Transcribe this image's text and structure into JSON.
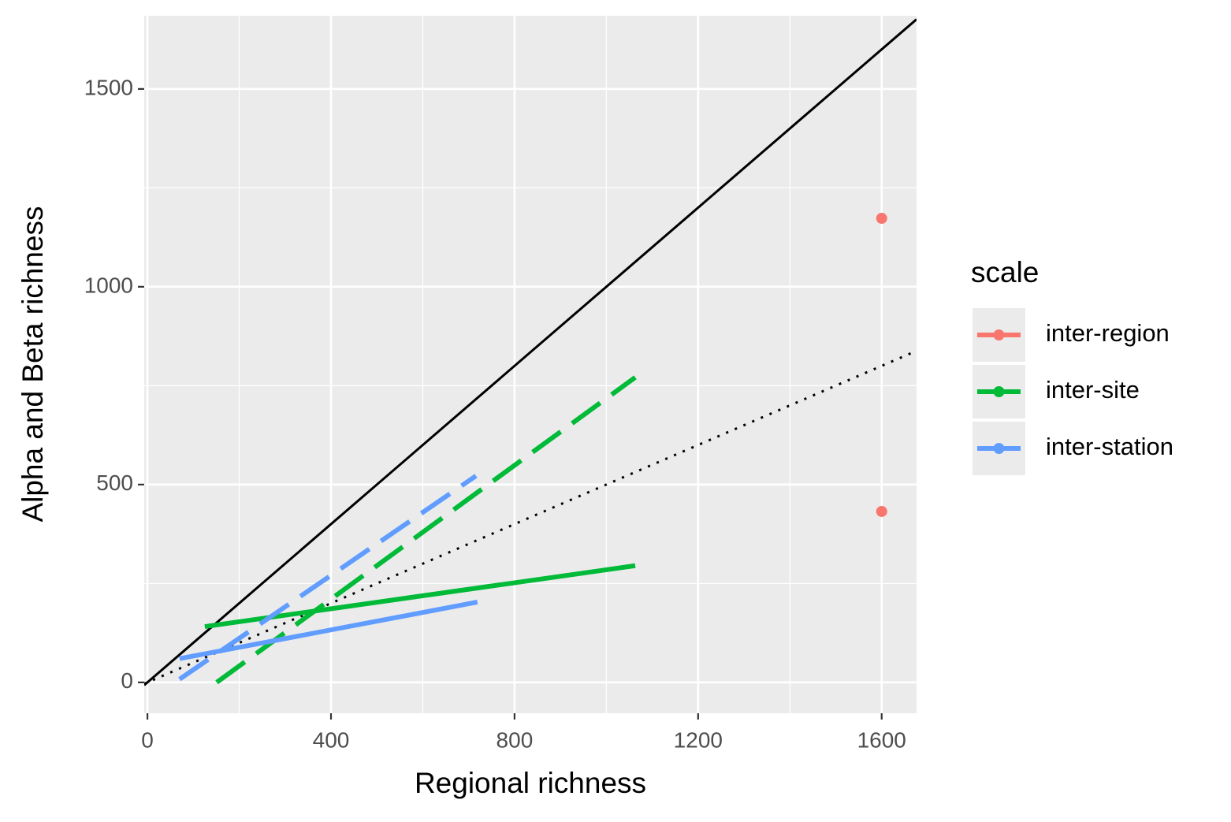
{
  "chart_data": {
    "type": "line",
    "x_label": "Regional richness",
    "y_label": "Alpha and Beta richness",
    "xlim": [
      -7,
      1676
    ],
    "ylim": [
      -78,
      1685
    ],
    "xticks": [
      0,
      400,
      800,
      1200,
      1600
    ],
    "yticks": [
      0,
      500,
      1000,
      1500
    ],
    "x_minor_grid": [
      200,
      600,
      1000,
      1400
    ],
    "y_minor_grid": [
      250,
      750,
      1250
    ],
    "grid": true,
    "legend_title": "scale",
    "legend_position": "right",
    "reference_lines": [
      {
        "slope": 1,
        "intercept": 0,
        "linetype": "solid",
        "color": "#000000"
      },
      {
        "slope": 0.5,
        "intercept": 0,
        "linetype": "dotted",
        "color": "#000000"
      }
    ],
    "series": [
      {
        "name": "inter-region",
        "color": "#F8766D",
        "points": {
          "x": [
            1600,
            1600
          ],
          "y": [
            1173,
            432
          ]
        }
      },
      {
        "name": "inter-site",
        "color": "#00BA38",
        "lines": [
          {
            "linetype": "solid",
            "x": [
              125,
              1063
            ],
            "y": [
              141,
              295
            ]
          },
          {
            "linetype": "dashed",
            "x": [
              151,
              1063
            ],
            "y": [
              0,
              771
            ]
          }
        ]
      },
      {
        "name": "inter-station",
        "color": "#619CFF",
        "lines": [
          {
            "linetype": "solid",
            "x": [
              70,
              719
            ],
            "y": [
              60,
              203
            ]
          },
          {
            "linetype": "dashed",
            "x": [
              70,
              716
            ],
            "y": [
              8,
              522
            ]
          }
        ]
      }
    ]
  }
}
